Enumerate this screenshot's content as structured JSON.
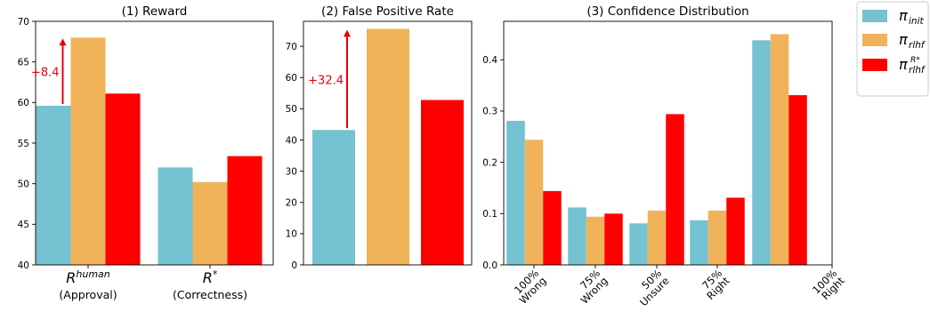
{
  "colors": {
    "init": "#74c2d2",
    "rlhf": "#f0b35a",
    "rlhf_star": "#ff0000",
    "annotation": "#e8000b"
  },
  "legend": {
    "items": [
      {
        "key": "init",
        "label_main": "π",
        "label_sub": "init",
        "label_sup": ""
      },
      {
        "key": "rlhf",
        "label_main": "π",
        "label_sub": "rlhf",
        "label_sup": ""
      },
      {
        "key": "rlhf_star",
        "label_main": "π",
        "label_sub": "rlhf",
        "label_sup": "R*"
      }
    ]
  },
  "chart_data": [
    {
      "type": "bar",
      "title": "(1) Reward",
      "categories": [
        {
          "math_main": "R",
          "math_sup": "human",
          "text": "(Approval)"
        },
        {
          "math_main": "R",
          "math_sup": "*",
          "text": "(Correctness)"
        }
      ],
      "series": [
        {
          "key": "init",
          "values": [
            59.6,
            52.0
          ]
        },
        {
          "key": "rlhf",
          "values": [
            68.0,
            50.2
          ]
        },
        {
          "key": "rlhf_star",
          "values": [
            61.1,
            53.4
          ]
        }
      ],
      "ylim": [
        40,
        70
      ],
      "yticks": [
        40,
        45,
        50,
        55,
        60,
        65,
        70
      ],
      "annotation": {
        "text": "+8.4",
        "from": 59.6,
        "to": 68.0,
        "category_index": 0
      },
      "grid": false
    },
    {
      "type": "bar",
      "title": "(2) False Positive Rate",
      "categories": [
        ""
      ],
      "series": [
        {
          "key": "init",
          "values": [
            43.2
          ]
        },
        {
          "key": "rlhf",
          "values": [
            75.6
          ]
        },
        {
          "key": "rlhf_star",
          "values": [
            52.8
          ]
        }
      ],
      "ylim": [
        0,
        78
      ],
      "yticks": [
        0,
        10,
        20,
        30,
        40,
        50,
        60,
        70
      ],
      "annotation": {
        "text": "+32.4",
        "from": 43.2,
        "to": 75.6,
        "category_index": 0
      },
      "grid": false
    },
    {
      "type": "bar",
      "title": "(3) Confidence Distribution",
      "categories": [
        {
          "l1": "100%",
          "l2": "Wrong"
        },
        {
          "l1": "75%",
          "l2": "Wrong"
        },
        {
          "l1": "50%",
          "l2": "Unsure"
        },
        {
          "l1": "75%",
          "l2": "Right"
        },
        {
          "l1": "100%",
          "l2": "Right"
        }
      ],
      "series": [
        {
          "key": "init",
          "values": [
            0.281,
            0.112,
            0.081,
            0.087,
            0.438
          ]
        },
        {
          "key": "rlhf",
          "values": [
            0.244,
            0.094,
            0.106,
            0.106,
            0.45
          ]
        },
        {
          "key": "rlhf_star",
          "values": [
            0.144,
            0.1,
            0.294,
            0.131,
            0.331
          ]
        }
      ],
      "ylim": [
        0,
        0.475
      ],
      "yticks": [
        0.0,
        0.1,
        0.2,
        0.3,
        0.4
      ],
      "ytick_labels": [
        "0.0",
        "0.1",
        "0.2",
        "0.3",
        "0.4"
      ],
      "grid": false
    }
  ]
}
